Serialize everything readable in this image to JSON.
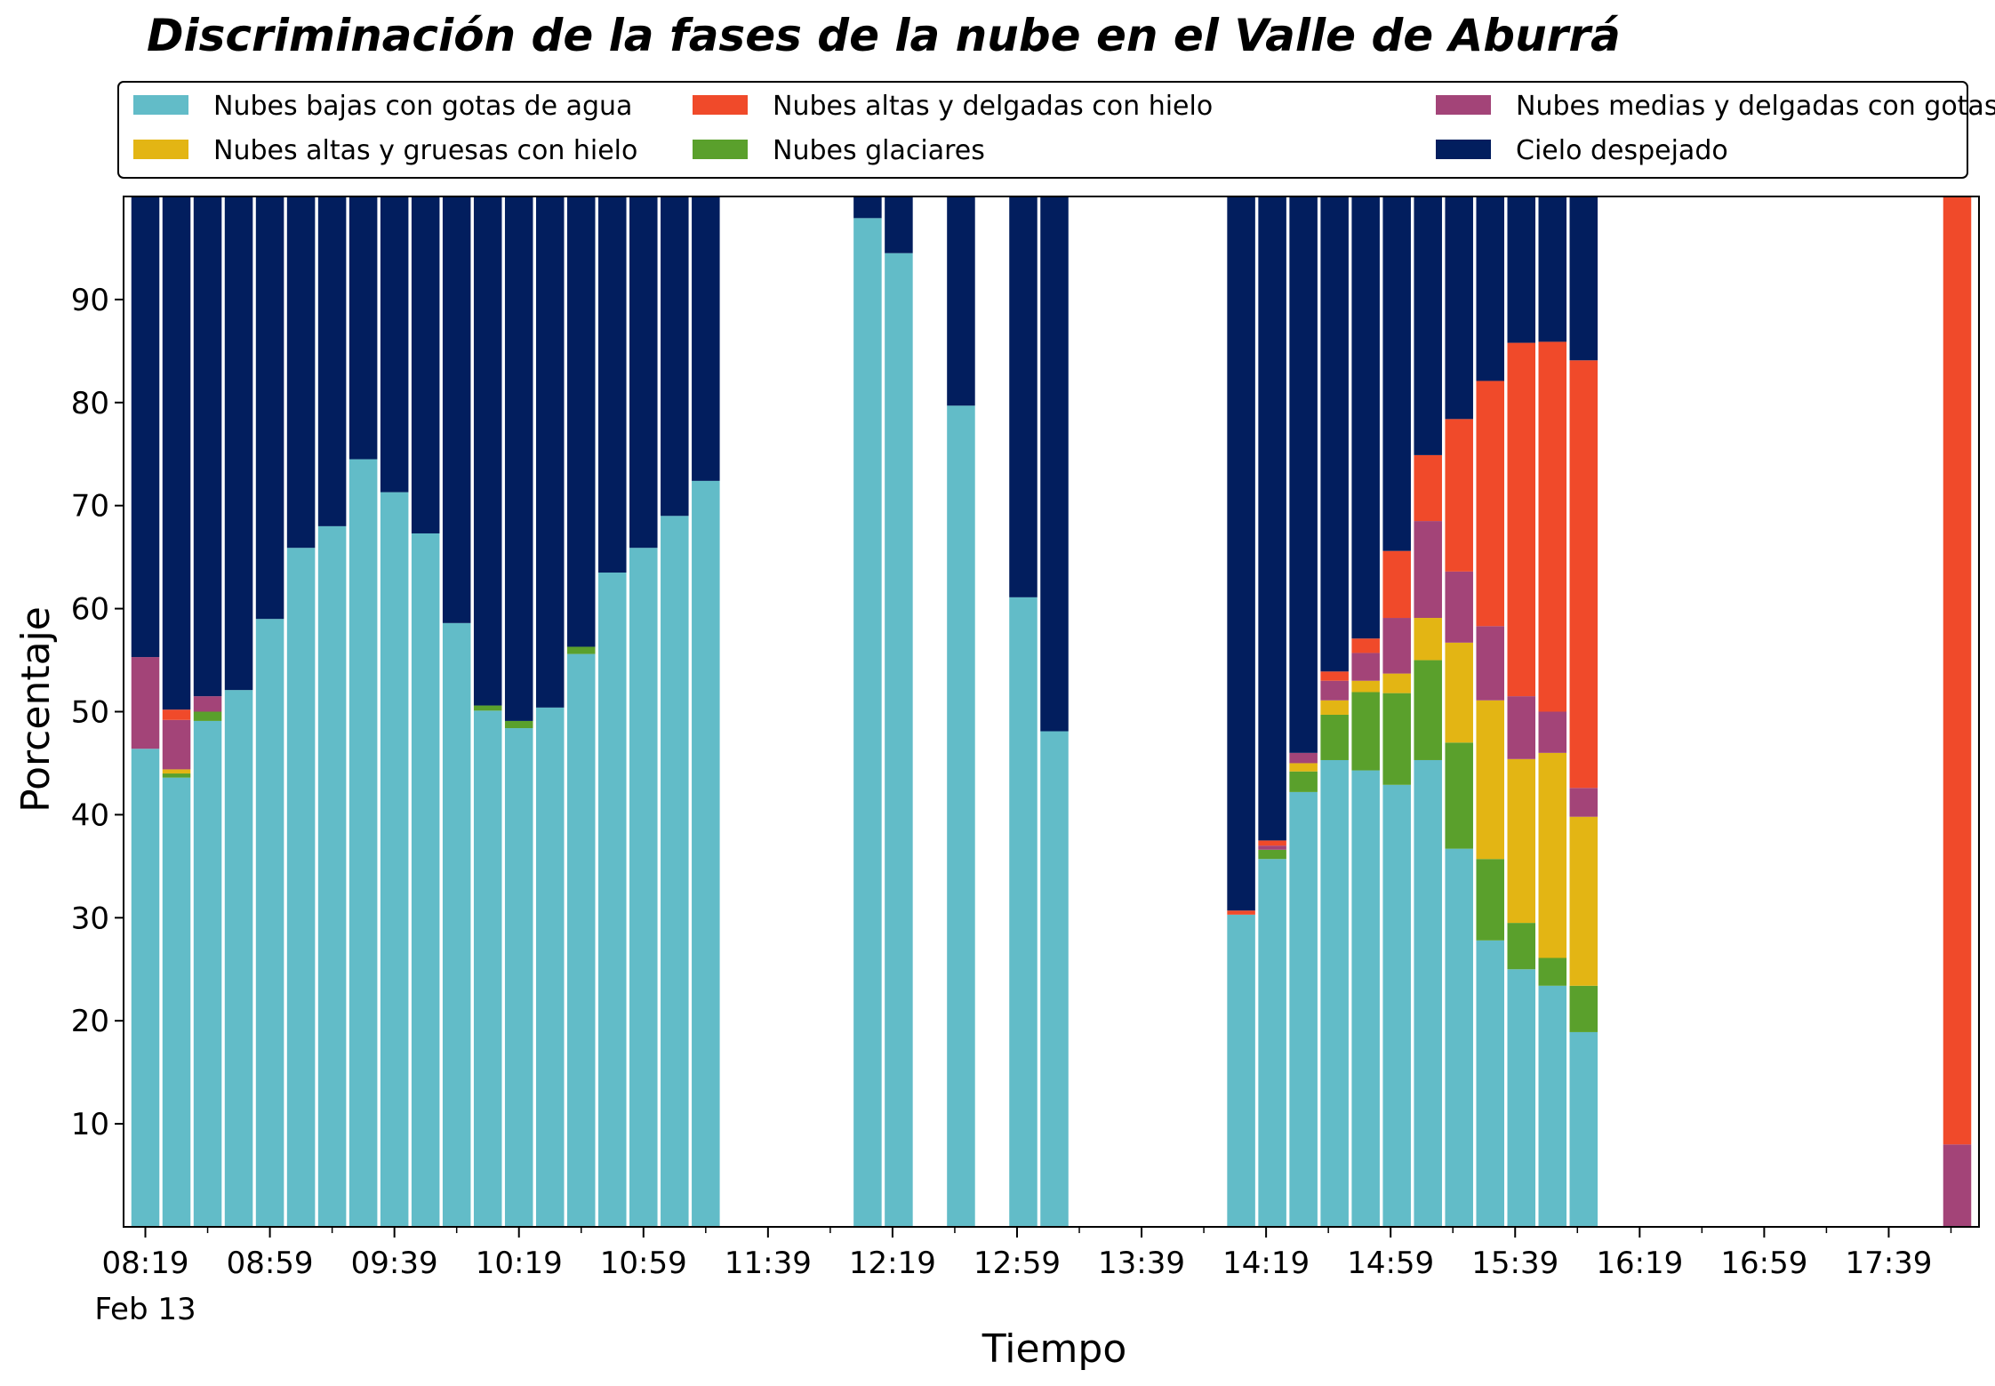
{
  "chart_data": {
    "type": "bar",
    "stacked": true,
    "title": "Discriminación de la fases de la nube en el Valle de Aburrá",
    "xlabel": "Tiempo",
    "ylabel": "Porcentaje",
    "xlim": [
      "08:12",
      "18:08"
    ],
    "ylim": [
      0,
      100
    ],
    "y_ticks": [
      10,
      20,
      30,
      40,
      50,
      60,
      70,
      80,
      90
    ],
    "x_ticks": [
      "08:19",
      "08:59",
      "09:39",
      "10:19",
      "10:59",
      "11:39",
      "12:19",
      "12:59",
      "13:39",
      "14:19",
      "14:59",
      "15:39",
      "16:19",
      "16:59",
      "17:39"
    ],
    "x_minor_ticks": [
      "08:39",
      "09:19",
      "09:59",
      "10:39",
      "11:19",
      "11:59",
      "12:39",
      "13:19",
      "13:59",
      "14:39",
      "15:19",
      "15:59",
      "16:39",
      "17:19",
      "17:59"
    ],
    "x_date_label": "Feb 13",
    "grid": false,
    "legend_position": "top",
    "legend_columns": 3,
    "series": [
      {
        "name": "Nubes bajas con gotas de agua",
        "color": "#62bcc8"
      },
      {
        "name": "Nubes glaciares",
        "color": "#5aa02c"
      },
      {
        "name": "Nubes altas y gruesas con hielo",
        "color": "#e3b514"
      },
      {
        "name": "Nubes medias y delgadas con gotas de agua",
        "color": "#a34478"
      },
      {
        "name": "Nubes altas y delgadas con hielo",
        "color": "#f04a2a"
      },
      {
        "name": "Cielo despejado",
        "color": "#021e5e"
      }
    ],
    "legend_order": [
      0,
      2,
      4,
      1,
      3,
      5
    ],
    "bar_width_minutes": 9,
    "bars": [
      {
        "time": "08:19",
        "values": [
          46.4,
          0,
          0,
          8.9,
          0,
          44.7
        ]
      },
      {
        "time": "08:29",
        "values": [
          43.6,
          0.4,
          0.4,
          4.8,
          1.0,
          49.8
        ]
      },
      {
        "time": "08:39",
        "values": [
          49.1,
          0.9,
          0,
          1.5,
          0,
          48.5
        ]
      },
      {
        "time": "08:49",
        "values": [
          52.1,
          0,
          0,
          0,
          0,
          47.9
        ]
      },
      {
        "time": "08:59",
        "values": [
          59.0,
          0,
          0,
          0,
          0,
          41.0
        ]
      },
      {
        "time": "09:09",
        "values": [
          65.9,
          0,
          0,
          0,
          0,
          34.1
        ]
      },
      {
        "time": "09:19",
        "values": [
          68.0,
          0,
          0,
          0,
          0,
          32.0
        ]
      },
      {
        "time": "09:29",
        "values": [
          74.5,
          0,
          0,
          0,
          0,
          25.5
        ]
      },
      {
        "time": "09:39",
        "values": [
          71.3,
          0,
          0,
          0,
          0,
          28.7
        ]
      },
      {
        "time": "09:49",
        "values": [
          67.3,
          0,
          0,
          0,
          0,
          32.7
        ]
      },
      {
        "time": "09:59",
        "values": [
          58.6,
          0,
          0,
          0,
          0,
          41.4
        ]
      },
      {
        "time": "10:09",
        "values": [
          50.1,
          0.5,
          0,
          0,
          0,
          49.4
        ]
      },
      {
        "time": "10:19",
        "values": [
          48.4,
          0.7,
          0,
          0,
          0,
          50.9
        ]
      },
      {
        "time": "10:29",
        "values": [
          50.4,
          0,
          0,
          0,
          0,
          49.6
        ]
      },
      {
        "time": "10:39",
        "values": [
          55.6,
          0.7,
          0,
          0,
          0,
          43.7
        ]
      },
      {
        "time": "10:49",
        "values": [
          63.5,
          0,
          0,
          0,
          0,
          36.5
        ]
      },
      {
        "time": "10:59",
        "values": [
          65.9,
          0,
          0,
          0,
          0,
          34.1
        ]
      },
      {
        "time": "11:09",
        "values": [
          69.0,
          0,
          0,
          0,
          0,
          31.0
        ]
      },
      {
        "time": "11:19",
        "values": [
          72.4,
          0,
          0,
          0,
          0,
          27.6
        ]
      },
      {
        "time": "12:11",
        "values": [
          97.9,
          0,
          0,
          0,
          0,
          2.1
        ]
      },
      {
        "time": "12:21",
        "values": [
          94.5,
          0,
          0,
          0,
          0,
          5.5
        ]
      },
      {
        "time": "12:41",
        "values": [
          79.7,
          0,
          0,
          0,
          0,
          20.3
        ]
      },
      {
        "time": "13:01",
        "values": [
          61.1,
          0,
          0,
          0,
          0,
          38.9
        ]
      },
      {
        "time": "13:11",
        "values": [
          48.1,
          0,
          0,
          0,
          0,
          51.9
        ]
      },
      {
        "time": "14:11",
        "values": [
          30.3,
          0,
          0,
          0,
          0.4,
          69.3
        ]
      },
      {
        "time": "14:21",
        "values": [
          35.7,
          0.9,
          0,
          0.4,
          0.5,
          62.5
        ]
      },
      {
        "time": "14:31",
        "values": [
          42.2,
          2.0,
          0.8,
          1.0,
          0,
          54.0
        ]
      },
      {
        "time": "14:41",
        "values": [
          45.3,
          4.4,
          1.4,
          1.9,
          0.9,
          46.1
        ]
      },
      {
        "time": "14:51",
        "values": [
          44.3,
          7.6,
          1.1,
          2.7,
          1.4,
          42.9
        ]
      },
      {
        "time": "15:01",
        "values": [
          42.9,
          8.9,
          1.9,
          5.4,
          6.5,
          34.4
        ]
      },
      {
        "time": "15:11",
        "values": [
          45.3,
          9.7,
          4.1,
          9.4,
          6.4,
          25.1
        ]
      },
      {
        "time": "15:21",
        "values": [
          36.7,
          10.3,
          9.7,
          6.9,
          14.8,
          21.6
        ]
      },
      {
        "time": "15:31",
        "values": [
          27.8,
          7.9,
          15.4,
          7.2,
          23.8,
          17.9
        ]
      },
      {
        "time": "15:41",
        "values": [
          25.0,
          4.5,
          15.9,
          6.1,
          34.3,
          14.2
        ]
      },
      {
        "time": "15:51",
        "values": [
          23.4,
          2.7,
          19.9,
          4.0,
          35.9,
          14.1
        ]
      },
      {
        "time": "16:01",
        "values": [
          18.9,
          4.5,
          16.4,
          2.8,
          41.5,
          15.9
        ]
      },
      {
        "time": "18:01",
        "values": [
          0,
          0,
          0,
          8.0,
          92.0,
          0
        ]
      }
    ]
  }
}
